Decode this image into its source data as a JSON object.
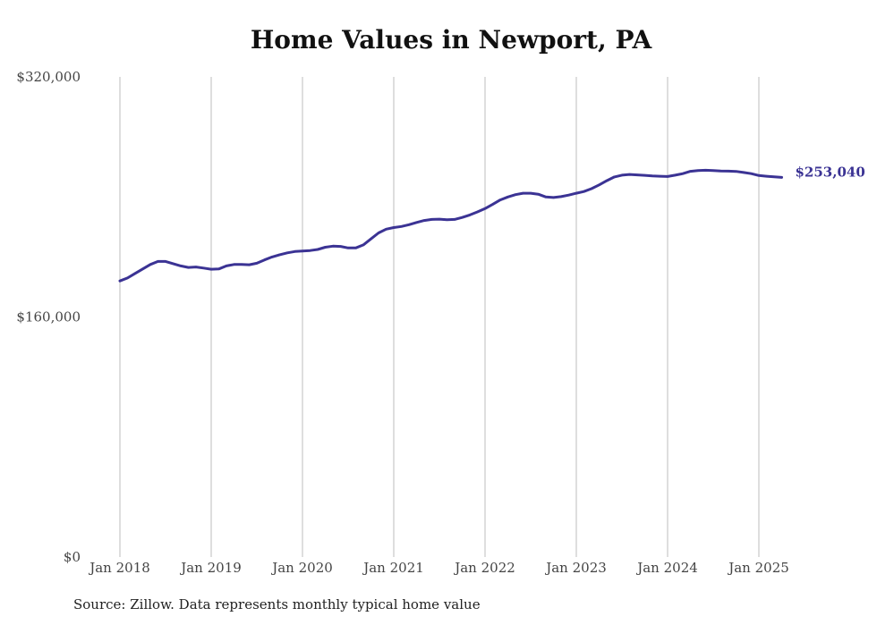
{
  "chart_data": {
    "type": "line",
    "title": "Home Values in Newport, PA",
    "source": "Source: Zillow. Data represents monthly typical home value",
    "ylim": [
      0,
      320000
    ],
    "y_ticks": [
      {
        "value": 0,
        "label": "$0"
      },
      {
        "value": 160000,
        "label": "$160,000"
      },
      {
        "value": 320000,
        "label": "$320,000"
      }
    ],
    "x_ticks": [
      {
        "date": "2018-01",
        "label": "Jan 2018"
      },
      {
        "date": "2019-01",
        "label": "Jan 2019"
      },
      {
        "date": "2020-01",
        "label": "Jan 2020"
      },
      {
        "date": "2021-01",
        "label": "Jan 2021"
      },
      {
        "date": "2022-01",
        "label": "Jan 2022"
      },
      {
        "date": "2023-01",
        "label": "Jan 2023"
      },
      {
        "date": "2024-01",
        "label": "Jan 2024"
      },
      {
        "date": "2025-01",
        "label": "Jan 2025"
      }
    ],
    "grid": "vertical",
    "line_color": "#3b3394",
    "end_label": "$253,040",
    "series": [
      {
        "x": [
          "2018-01",
          "2018-02",
          "2018-03",
          "2018-04",
          "2018-05",
          "2018-06",
          "2018-07",
          "2018-08",
          "2018-09",
          "2018-10",
          "2018-11",
          "2018-12",
          "2019-01",
          "2019-02",
          "2019-03",
          "2019-04",
          "2019-05",
          "2019-06",
          "2019-07",
          "2019-08",
          "2019-09",
          "2019-10",
          "2019-11",
          "2019-12",
          "2020-01",
          "2020-02",
          "2020-03",
          "2020-04",
          "2020-05",
          "2020-06",
          "2020-07",
          "2020-08",
          "2020-09",
          "2020-10",
          "2020-11",
          "2020-12",
          "2021-01",
          "2021-02",
          "2021-03",
          "2021-04",
          "2021-05",
          "2021-06",
          "2021-07",
          "2021-08",
          "2021-09",
          "2021-10",
          "2021-11",
          "2021-12",
          "2022-01",
          "2022-02",
          "2022-03",
          "2022-04",
          "2022-05",
          "2022-06",
          "2022-07",
          "2022-08",
          "2022-09",
          "2022-10",
          "2022-11",
          "2022-12",
          "2023-01",
          "2023-02",
          "2023-03",
          "2023-04",
          "2023-05",
          "2023-06",
          "2023-07",
          "2023-08",
          "2023-09",
          "2023-10",
          "2023-11",
          "2023-12",
          "2024-01",
          "2024-02",
          "2024-03",
          "2024-04",
          "2024-05",
          "2024-06",
          "2024-07",
          "2024-08",
          "2024-09",
          "2024-10",
          "2024-11",
          "2024-12",
          "2025-01",
          "2025-02",
          "2025-03",
          "2025-04"
        ],
        "values": [
          184000,
          186000,
          189000,
          192000,
          195000,
          197000,
          197000,
          195500,
          194000,
          193000,
          193300,
          192600,
          191800,
          192000,
          194000,
          195000,
          195000,
          194800,
          195800,
          198000,
          200000,
          201500,
          202700,
          203600,
          204000,
          204300,
          205000,
          206500,
          207200,
          207000,
          206000,
          206000,
          208000,
          212000,
          216000,
          218500,
          219600,
          220300,
          221500,
          223000,
          224300,
          225000,
          225200,
          224800,
          225000,
          226300,
          228000,
          230000,
          232200,
          235000,
          238000,
          240000,
          241500,
          242500,
          242500,
          241800,
          240000,
          239600,
          240200,
          241200,
          242500,
          243600,
          245500,
          248000,
          250800,
          253300,
          254500,
          255000,
          254700,
          254400,
          254000,
          253800,
          253600,
          254500,
          255500,
          257100,
          257600,
          257800,
          257600,
          257300,
          257200,
          257000,
          256300,
          255500,
          254300,
          253800,
          253400,
          253040
        ]
      }
    ]
  }
}
